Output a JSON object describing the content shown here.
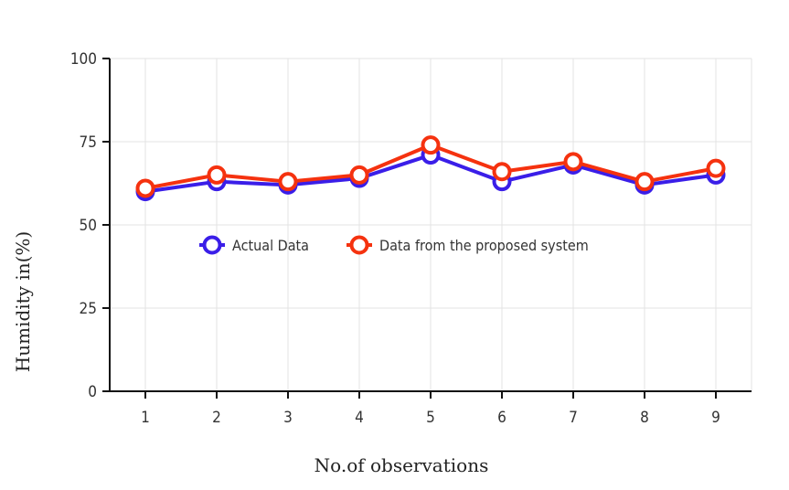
{
  "chart_data": {
    "type": "line",
    "title": "",
    "xlabel": "No.of observations",
    "ylabel": "Humidity in(%)",
    "x": [
      1,
      2,
      3,
      4,
      5,
      6,
      7,
      8,
      9
    ],
    "ylim": [
      0,
      100
    ],
    "yticks": [
      0,
      25,
      50,
      75,
      100
    ],
    "grid": true,
    "legend_position": "center-left, inside plot",
    "series": [
      {
        "name": "Actual Data",
        "color": "#3a1ee8",
        "values": [
          60,
          63,
          62,
          64,
          71,
          63,
          68,
          62,
          65
        ]
      },
      {
        "name": "Data from the proposed system",
        "color": "#f5320f",
        "values": [
          61,
          65,
          63,
          65,
          74,
          66,
          69,
          63,
          67
        ]
      }
    ]
  }
}
